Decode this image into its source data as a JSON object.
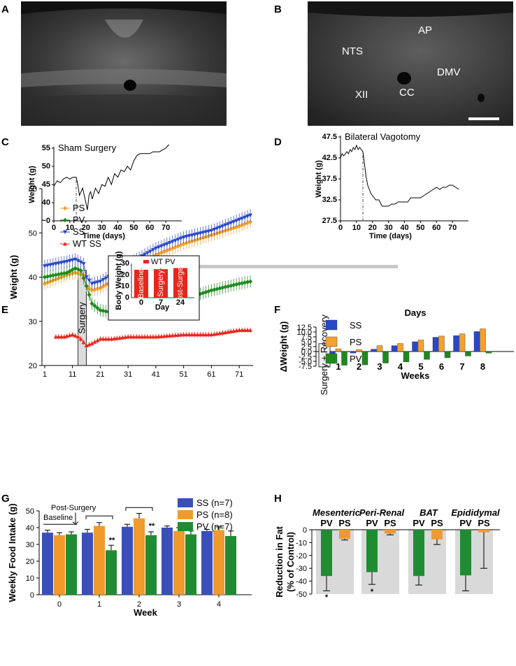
{
  "colors": {
    "ss": "#2a47c9",
    "ps": "#f4a12d",
    "pv": "#1e8a1e",
    "wt": "#e8261c",
    "bar_ss": "#3a4fb8",
    "bar_ps": "#f09a2c",
    "bar_pv": "#1f8c33",
    "divider": "#c8c8c8",
    "shade": "#d9d9d9"
  },
  "panels": {
    "A": {
      "letter": "A"
    },
    "B": {
      "letter": "B",
      "labels": {
        "ap": "AP",
        "nts": "NTS",
        "dmv": "DMV",
        "cc": "CC",
        "xii": "XII"
      }
    },
    "C": {
      "letter": "C"
    },
    "D": {
      "letter": "D"
    },
    "E": {
      "letter": "E"
    },
    "F": {
      "letter": "F"
    },
    "G": {
      "letter": "G"
    },
    "H": {
      "letter": "H"
    }
  },
  "chart_data": [
    {
      "id": "C",
      "type": "line",
      "title": "Sham Surgery",
      "xlabel": "Time (days)",
      "ylabel": "Weight (g)",
      "xlim": [
        0,
        80
      ],
      "ylim": [
        35,
        55
      ],
      "xticks": [
        0,
        10,
        20,
        30,
        40,
        50,
        60,
        70
      ],
      "yticks": [
        35,
        40,
        45,
        50,
        55
      ],
      "ytick_labels": [
        "~0",
        "40",
        "45",
        "50",
        "55"
      ],
      "surgery_day": 14,
      "x": [
        0,
        2,
        4,
        6,
        8,
        10,
        12,
        14,
        15,
        16,
        17,
        18,
        19,
        20,
        21,
        22,
        23,
        24,
        26,
        28,
        30,
        32,
        34,
        36,
        38,
        40,
        42,
        44,
        46,
        48,
        50,
        52,
        54,
        56,
        58,
        60,
        62,
        64,
        66,
        68,
        70,
        72
      ],
      "y": [
        44.5,
        46,
        45.5,
        46.5,
        47,
        46.5,
        47,
        47,
        45,
        42,
        43,
        44,
        42,
        40,
        38,
        42,
        43,
        41,
        44,
        42.5,
        45,
        44.5,
        47,
        45,
        48,
        47,
        49,
        48.5,
        50,
        49,
        51.5,
        53,
        53.5,
        53.5,
        53.5,
        53.5,
        54,
        54,
        54,
        54.5,
        55,
        56
      ]
    },
    {
      "id": "D",
      "type": "line",
      "title": "Bilateral Vagotomy",
      "xlabel": "Time (days)",
      "ylabel": "Weight (g)",
      "xlim": [
        0,
        80
      ],
      "ylim": [
        27.5,
        47.5
      ],
      "xticks": [
        0,
        10,
        20,
        30,
        40,
        50,
        60,
        70
      ],
      "yticks": [
        27.5,
        32.5,
        37.5,
        42.5,
        47.5
      ],
      "surgery_day": 14,
      "x": [
        0,
        1,
        2,
        3,
        4,
        5,
        6,
        7,
        8,
        9,
        10,
        11,
        12,
        13,
        14,
        15,
        16,
        17,
        18,
        19,
        20,
        22,
        24,
        26,
        28,
        30,
        32,
        34,
        36,
        38,
        40,
        42,
        44,
        46,
        48,
        50,
        52,
        54,
        56,
        58,
        60,
        62,
        64,
        66,
        68,
        70,
        72,
        74
      ],
      "y": [
        42.5,
        43.5,
        43,
        43.5,
        44,
        43.5,
        44.5,
        44,
        45,
        44.5,
        45.5,
        44.5,
        45,
        44.5,
        44,
        41,
        38,
        36,
        35,
        34,
        33.5,
        32.5,
        32.5,
        31,
        31,
        31,
        31.5,
        31.5,
        32,
        32,
        32,
        32,
        33,
        33,
        33,
        33,
        33.5,
        34,
        34.5,
        35,
        35.5,
        35,
        35.5,
        35.5,
        36,
        36,
        35.5,
        35
      ]
    },
    {
      "id": "E",
      "type": "line",
      "xlabel": "",
      "ylabel": "Weight (g)",
      "xlim": [
        0,
        76
      ],
      "ylim": [
        20,
        60
      ],
      "xticks": [
        1,
        11,
        21,
        31,
        41,
        51,
        61,
        71
      ],
      "yticks": [
        20,
        30,
        40,
        50,
        60
      ],
      "surgery_label": "Surgery",
      "surgery_span": [
        13,
        16
      ],
      "legend": [
        "PS",
        "PV",
        "SS",
        "WT SS"
      ],
      "series": [
        {
          "name": "PS",
          "x": [
            1,
            5,
            9,
            12,
            15,
            16,
            18,
            21,
            25,
            31,
            41,
            51,
            61,
            71,
            75
          ],
          "y": [
            38.5,
            39.5,
            40.5,
            41,
            40.5,
            38,
            37,
            37.5,
            39,
            41,
            45,
            47.5,
            49.5,
            51.5,
            52.5
          ]
        },
        {
          "name": "PV",
          "x": [
            1,
            5,
            9,
            12,
            14,
            16,
            18,
            21,
            25,
            31,
            41,
            51,
            61,
            71,
            75
          ],
          "y": [
            40,
            40.5,
            41,
            42,
            41.5,
            38,
            34,
            32.5,
            32,
            32.5,
            33.5,
            35,
            37,
            38.5,
            39
          ]
        },
        {
          "name": "SS",
          "x": [
            1,
            5,
            9,
            12,
            15,
            16,
            18,
            21,
            25,
            31,
            41,
            51,
            61,
            71,
            75
          ],
          "y": [
            42.5,
            43,
            43.5,
            44,
            43,
            40,
            38.5,
            39,
            40.5,
            43,
            46.5,
            49,
            50.5,
            53,
            54
          ]
        },
        {
          "name": "WT SS",
          "x": [
            5,
            8,
            11,
            13,
            14,
            16,
            18,
            21,
            25,
            31,
            41,
            51,
            61,
            66,
            71,
            75
          ],
          "y": [
            26.5,
            26.5,
            27,
            26.5,
            26,
            24.5,
            25,
            26,
            26,
            26.5,
            26.5,
            27,
            27,
            27.5,
            28,
            28
          ]
        }
      ]
    },
    {
      "id": "E-inset",
      "type": "bar",
      "ylabel": "Body Weight (g)",
      "xlabel": "Day",
      "legend": [
        "WT PV"
      ],
      "categories": [
        "0",
        "7",
        "24"
      ],
      "bar_labels": [
        "Baseline",
        "Surgery",
        "Post-Surgery"
      ],
      "values": [
        24.5,
        25,
        26
      ],
      "ylim": [
        0,
        30
      ],
      "yticks": [
        0,
        10,
        20,
        30
      ]
    },
    {
      "id": "F",
      "type": "bar",
      "title": "Days",
      "xlabel": "Weeks",
      "ylabel": "ΔWeight (g)",
      "ylim": [
        -7.5,
        12.5
      ],
      "yticks": [
        -7.5,
        -5.0,
        -2.5,
        0.0,
        2.5,
        5.0,
        7.5,
        10.0,
        12.5
      ],
      "categories": [
        "1",
        "2",
        "3",
        "4",
        "5",
        "6",
        "7",
        "8"
      ],
      "recovery_label": "Surgery + Recovery",
      "series": [
        {
          "name": "SS",
          "values": [
            -2.6,
            -0.8,
            1.2,
            3.0,
            5.0,
            7.3,
            8.1,
            10.2
          ]
        },
        {
          "name": "PS",
          "values": [
            1.4,
            1.0,
            3.0,
            4.1,
            5.9,
            7.9,
            9.0,
            11.6
          ]
        },
        {
          "name": "PV",
          "values": [
            -7.0,
            -6.8,
            -5.9,
            -5.3,
            -4.0,
            -3.2,
            -2.3,
            -0.8
          ]
        }
      ]
    },
    {
      "id": "G",
      "type": "bar",
      "xlabel": "Week",
      "ylabel": "Weekly Food Intake (g)",
      "ylim": [
        0,
        50
      ],
      "yticks": [
        0,
        10,
        20,
        30,
        40,
        50
      ],
      "categories": [
        "0",
        "1",
        "2",
        "3",
        "4"
      ],
      "annotations": {
        "baseline": "Baseline",
        "post_surgery": "Post-Surgery",
        "sig_week1": "**",
        "sig_week2": "**"
      },
      "series": [
        {
          "name": "SS (n=7)",
          "values": [
            37,
            37,
            40.5,
            40,
            38
          ],
          "errors": [
            1.5,
            2,
            1.5,
            1,
            1
          ]
        },
        {
          "name": "PS (n=8)",
          "values": [
            35.5,
            41,
            45.5,
            38,
            38.5
          ],
          "errors": [
            1.5,
            2,
            3,
            2,
            2
          ]
        },
        {
          "name": "PV (n=7)",
          "values": [
            36,
            26.5,
            35.5,
            36,
            35
          ],
          "errors": [
            1.5,
            3,
            2,
            2,
            3
          ]
        }
      ]
    },
    {
      "id": "H",
      "type": "bar",
      "xlabel": "",
      "ylabel": "Reduction in Fat (% of Control)",
      "ylim": [
        -50,
        0
      ],
      "yticks": [
        -50,
        -40,
        -30,
        -20,
        -10,
        0
      ],
      "categories": [
        "Mesenteric",
        "Peri-Renal",
        "BAT",
        "Epididymal"
      ],
      "group_labels": [
        "PV",
        "PS"
      ],
      "significance": [
        "*",
        "*",
        "",
        ""
      ],
      "series": [
        {
          "name": "PV",
          "values": [
            -36,
            -33,
            -36,
            -35.5
          ],
          "errors": [
            11.5,
            9.5,
            7,
            12
          ]
        },
        {
          "name": "PS",
          "values": [
            -7,
            -3,
            -7.5,
            -2
          ],
          "errors": [
            1,
            1,
            4,
            28
          ]
        }
      ]
    }
  ]
}
